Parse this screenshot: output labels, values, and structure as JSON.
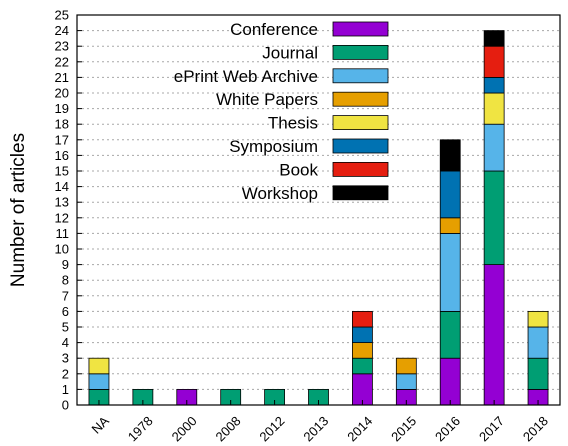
{
  "chart_data": {
    "type": "bar",
    "stacked": true,
    "ylabel": "Number of articles",
    "xlabel": "",
    "ylim": [
      0,
      25
    ],
    "y_ticks": [
      "0",
      "1",
      "2",
      "3",
      "4",
      "5",
      "6",
      "7",
      "8",
      "9",
      "10",
      "11",
      "12",
      "13",
      "14",
      "15",
      "16",
      "17",
      "18",
      "19",
      "20",
      "21",
      "22",
      "23",
      "24",
      "25"
    ],
    "grid": "horizontal dotted",
    "legend_position": "top-left",
    "categories": [
      "NA",
      "1978",
      "2000",
      "2008",
      "2012",
      "2013",
      "2014",
      "2015",
      "2016",
      "2017",
      "2018"
    ],
    "series": [
      {
        "name": "Conference",
        "color": "#9400d3",
        "values": [
          0,
          0,
          1,
          0,
          0,
          0,
          2,
          1,
          3,
          9,
          1
        ]
      },
      {
        "name": "Journal",
        "color": "#009e73",
        "values": [
          1,
          1,
          0,
          1,
          1,
          1,
          1,
          0,
          3,
          6,
          2
        ]
      },
      {
        "name": "ePrint Web Archive",
        "color": "#56b4e9",
        "values": [
          1,
          0,
          0,
          0,
          0,
          0,
          0,
          1,
          5,
          3,
          2
        ]
      },
      {
        "name": "White Papers",
        "color": "#e69f00",
        "values": [
          0,
          0,
          0,
          0,
          0,
          0,
          1,
          1,
          1,
          0,
          0
        ]
      },
      {
        "name": "Thesis",
        "color": "#f0e442",
        "values": [
          1,
          0,
          0,
          0,
          0,
          0,
          0,
          0,
          0,
          2,
          1
        ]
      },
      {
        "name": "Symposium",
        "color": "#0072b2",
        "values": [
          0,
          0,
          0,
          0,
          0,
          0,
          1,
          0,
          3,
          1,
          0
        ]
      },
      {
        "name": "Book",
        "color": "#e51e10",
        "values": [
          0,
          0,
          0,
          0,
          0,
          0,
          1,
          0,
          0,
          2,
          0
        ]
      },
      {
        "name": "Workshop",
        "color": "#000000",
        "values": [
          0,
          0,
          0,
          0,
          0,
          0,
          0,
          0,
          2,
          1,
          0
        ]
      }
    ]
  }
}
